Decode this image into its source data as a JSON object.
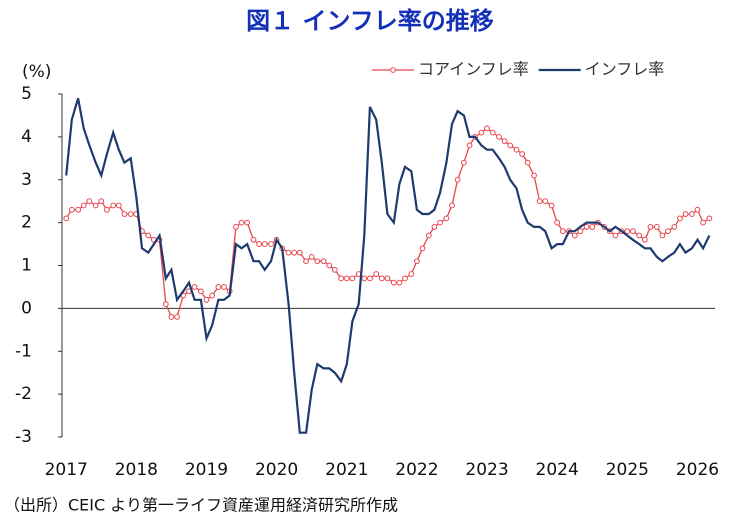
{
  "chart_data": {
    "type": "line",
    "title": "図１ インフレ率の推移",
    "y_label": "(%)",
    "source": "（出所）CEIC より第一ライフ資産運用経済研究所作成",
    "xlim": [
      2016.94,
      2026.25
    ],
    "xticks": [
      2017,
      2018,
      2019,
      2020,
      2021,
      2022,
      2023,
      2024,
      2025,
      2026
    ],
    "ylim": [
      -3,
      5
    ],
    "yticks": [
      -3,
      -2,
      -1,
      0,
      1,
      2,
      3,
      4,
      5
    ],
    "legend": "top-right",
    "x": [
      2017.0,
      2017.08,
      2017.17,
      2017.25,
      2017.33,
      2017.42,
      2017.5,
      2017.58,
      2017.67,
      2017.75,
      2017.83,
      2017.92,
      2018.0,
      2018.08,
      2018.17,
      2018.25,
      2018.33,
      2018.42,
      2018.5,
      2018.58,
      2018.67,
      2018.75,
      2018.83,
      2018.92,
      2019.0,
      2019.08,
      2019.17,
      2019.25,
      2019.33,
      2019.42,
      2019.5,
      2019.58,
      2019.67,
      2019.75,
      2019.83,
      2019.92,
      2020.0,
      2020.08,
      2020.17,
      2020.25,
      2020.33,
      2020.42,
      2020.5,
      2020.58,
      2020.67,
      2020.75,
      2020.83,
      2020.92,
      2021.0,
      2021.08,
      2021.17,
      2021.25,
      2021.33,
      2021.42,
      2021.5,
      2021.58,
      2021.67,
      2021.75,
      2021.83,
      2021.92,
      2022.0,
      2022.08,
      2022.17,
      2022.25,
      2022.33,
      2022.42,
      2022.5,
      2022.58,
      2022.67,
      2022.75,
      2022.83,
      2022.92,
      2023.0,
      2023.08,
      2023.17,
      2023.25,
      2023.33,
      2023.42,
      2023.5,
      2023.58,
      2023.67,
      2023.75,
      2023.83,
      2023.92,
      2024.0,
      2024.08,
      2024.17,
      2024.25,
      2024.33,
      2024.42,
      2024.5,
      2024.58,
      2024.67,
      2024.75,
      2024.83,
      2024.92,
      2025.0,
      2025.08,
      2025.17,
      2025.25,
      2025.33,
      2025.42,
      2025.5,
      2025.58,
      2025.67,
      2025.75,
      2025.83,
      2025.92,
      2026.0,
      2026.08,
      2026.17
    ],
    "series": [
      {
        "name": "コアインフレ率",
        "color": "#e8474f",
        "marker": "circle",
        "values": [
          2.1,
          2.3,
          2.3,
          2.4,
          2.5,
          2.4,
          2.5,
          2.3,
          2.4,
          2.4,
          2.2,
          2.2,
          2.2,
          1.8,
          1.7,
          1.6,
          1.6,
          0.1,
          -0.2,
          -0.2,
          0.3,
          0.4,
          0.5,
          0.4,
          0.2,
          0.3,
          0.5,
          0.5,
          0.4,
          1.9,
          2.0,
          2.0,
          1.6,
          1.5,
          1.5,
          1.5,
          1.6,
          1.4,
          1.3,
          1.3,
          1.3,
          1.1,
          1.2,
          1.1,
          1.1,
          1.0,
          0.9,
          0.7,
          0.7,
          0.7,
          0.8,
          0.7,
          0.7,
          0.8,
          0.7,
          0.7,
          0.6,
          0.6,
          0.7,
          0.8,
          1.1,
          1.4,
          1.7,
          1.9,
          2.0,
          2.1,
          2.4,
          3.0,
          3.4,
          3.8,
          4.0,
          4.1,
          4.2,
          4.1,
          4.0,
          3.9,
          3.8,
          3.7,
          3.6,
          3.4,
          3.1,
          2.5,
          2.5,
          2.4,
          2.0,
          1.8,
          1.8,
          1.7,
          1.8,
          1.9,
          1.9,
          2.0,
          1.9,
          1.8,
          1.7,
          1.8,
          1.8,
          1.8,
          1.7,
          1.6,
          1.9,
          1.9,
          1.7,
          1.8,
          1.9,
          2.1,
          2.2,
          2.2,
          2.3,
          2.0,
          2.1
        ]
      },
      {
        "name": "インフレ率",
        "color": "#1f3a6e",
        "marker": "none",
        "values": [
          3.1,
          4.4,
          4.9,
          4.2,
          3.8,
          3.4,
          3.1,
          3.6,
          4.1,
          3.7,
          3.4,
          3.5,
          2.6,
          1.4,
          1.3,
          1.5,
          1.7,
          0.7,
          0.9,
          0.2,
          0.4,
          0.6,
          0.2,
          0.2,
          -0.7,
          -0.4,
          0.2,
          0.2,
          0.3,
          1.5,
          1.4,
          1.5,
          1.1,
          1.1,
          0.9,
          1.1,
          1.6,
          1.4,
          0.1,
          -1.5,
          -2.9,
          -2.9,
          -1.9,
          -1.3,
          -1.4,
          -1.4,
          -1.5,
          -1.7,
          -1.3,
          -0.3,
          0.1,
          1.7,
          4.7,
          4.4,
          3.4,
          2.2,
          2.0,
          2.9,
          3.3,
          3.2,
          2.3,
          2.2,
          2.2,
          2.3,
          2.7,
          3.4,
          4.3,
          4.6,
          4.5,
          4.0,
          4.0,
          3.8,
          3.7,
          3.7,
          3.5,
          3.3,
          3.0,
          2.8,
          2.3,
          2.0,
          1.9,
          1.9,
          1.8,
          1.4,
          1.5,
          1.5,
          1.8,
          1.8,
          1.9,
          2.0,
          2.0,
          2.0,
          1.9,
          1.8,
          1.9,
          1.8,
          1.7,
          1.6,
          1.5,
          1.4,
          1.4,
          1.2,
          1.1,
          1.2,
          1.3,
          1.5,
          1.3,
          1.4,
          1.6,
          1.4,
          1.7
        ]
      }
    ]
  }
}
